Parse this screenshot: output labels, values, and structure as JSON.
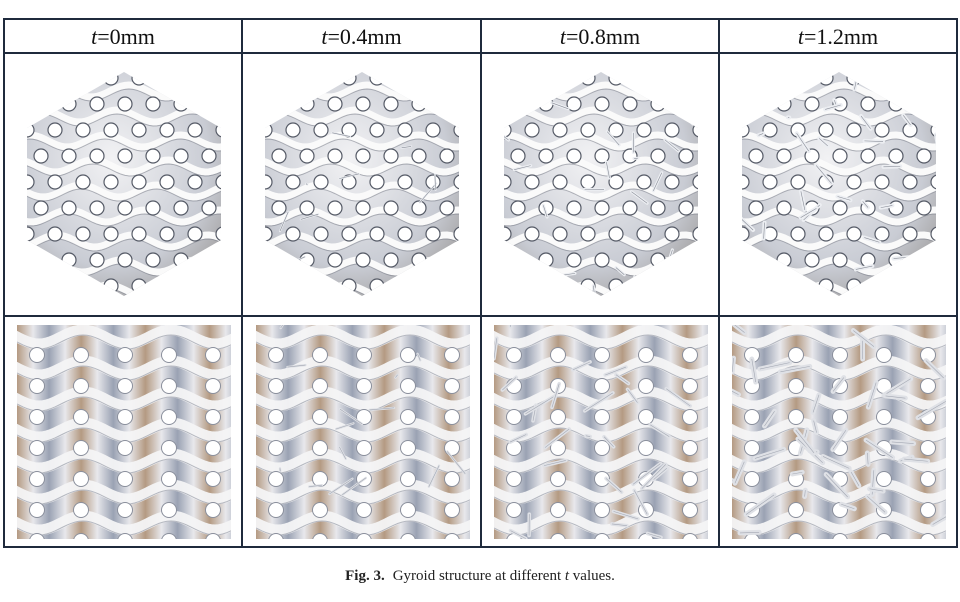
{
  "columns": [
    {
      "var": "t",
      "value": "=0mm"
    },
    {
      "var": "t",
      "value": "=0.4mm"
    },
    {
      "var": "t",
      "value": "=0.8mm"
    },
    {
      "var": "t",
      "value": "=1.2mm"
    }
  ],
  "caption": {
    "label": "Fig. 3.",
    "text_before": "Gyroid structure at different",
    "var": "t",
    "text_after": "values."
  },
  "colors": {
    "border": "#1f2a3c",
    "surface_light": "#f4f4f6",
    "surface_shade": "#8a8f9c",
    "surface_warm": "#b49a82"
  }
}
